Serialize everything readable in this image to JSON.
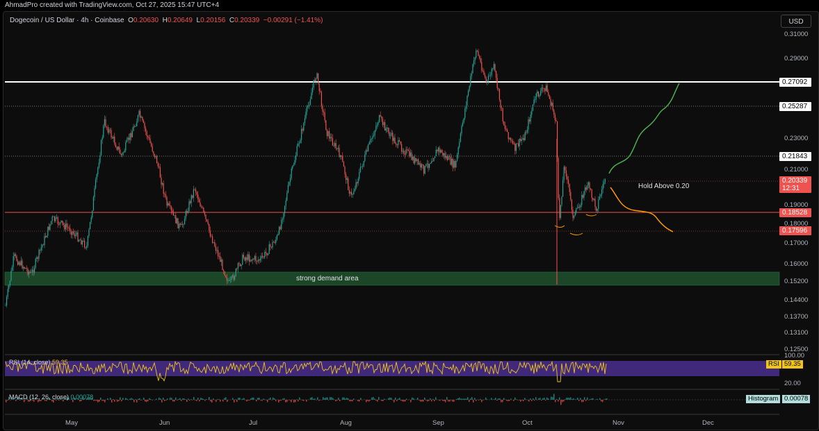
{
  "header": {
    "attribution": "AhmadPro created with TradingView.com, Oct 27, 2025 15:47 UTC+4"
  },
  "legend": {
    "symbol": "Dogecoin / US Dollar · 4h · Coinbase",
    "open_label": "O",
    "open": "0.20630",
    "high_label": "H",
    "high": "0.20649",
    "low_label": "L",
    "low": "0.20156",
    "close_label": "C",
    "close": "0.20339",
    "change": "−0.00291 (−1.41%)"
  },
  "currency_button": "USD",
  "price_axis": {
    "ticks": [
      "0.31000",
      "0.29000",
      "0.23000",
      "0.21000",
      "0.19000",
      "0.18000",
      "0.17000",
      "0.16000",
      "0.15200",
      "0.14400",
      "0.13700",
      "0.13100",
      "0.12500"
    ],
    "tags": {
      "resistance_top": "0.27092",
      "level_2": "0.25287",
      "level_3": "0.21843",
      "last_price": "0.20339",
      "countdown": "12:31",
      "support_1": "0.18528",
      "support_2": "0.17596"
    }
  },
  "time_axis": [
    "May",
    "Jun",
    "Jul",
    "Aug",
    "Sep",
    "Oct",
    "Nov",
    "Dec"
  ],
  "annotations": {
    "demand_zone": "strong demand area",
    "hold_note": "Hold Above 0.20"
  },
  "rsi": {
    "label": "RSI (14, close)",
    "value": "59.35",
    "tag_name": "RSI",
    "upper": "100.00",
    "lower": "20.00"
  },
  "macd": {
    "label": "MACD (12, 26, close)",
    "value": "0.00078",
    "tag_name": "Histogram",
    "tag_value": "0.00078"
  },
  "colors": {
    "bull": "#26a69a",
    "bear": "#ef5350",
    "rsi_line": "#f0c419",
    "rsi_band": "#4a2f8f",
    "demand_zone": "#1e4d2b",
    "bull_path": "#4caf50",
    "bear_path": "#ff9800"
  }
}
